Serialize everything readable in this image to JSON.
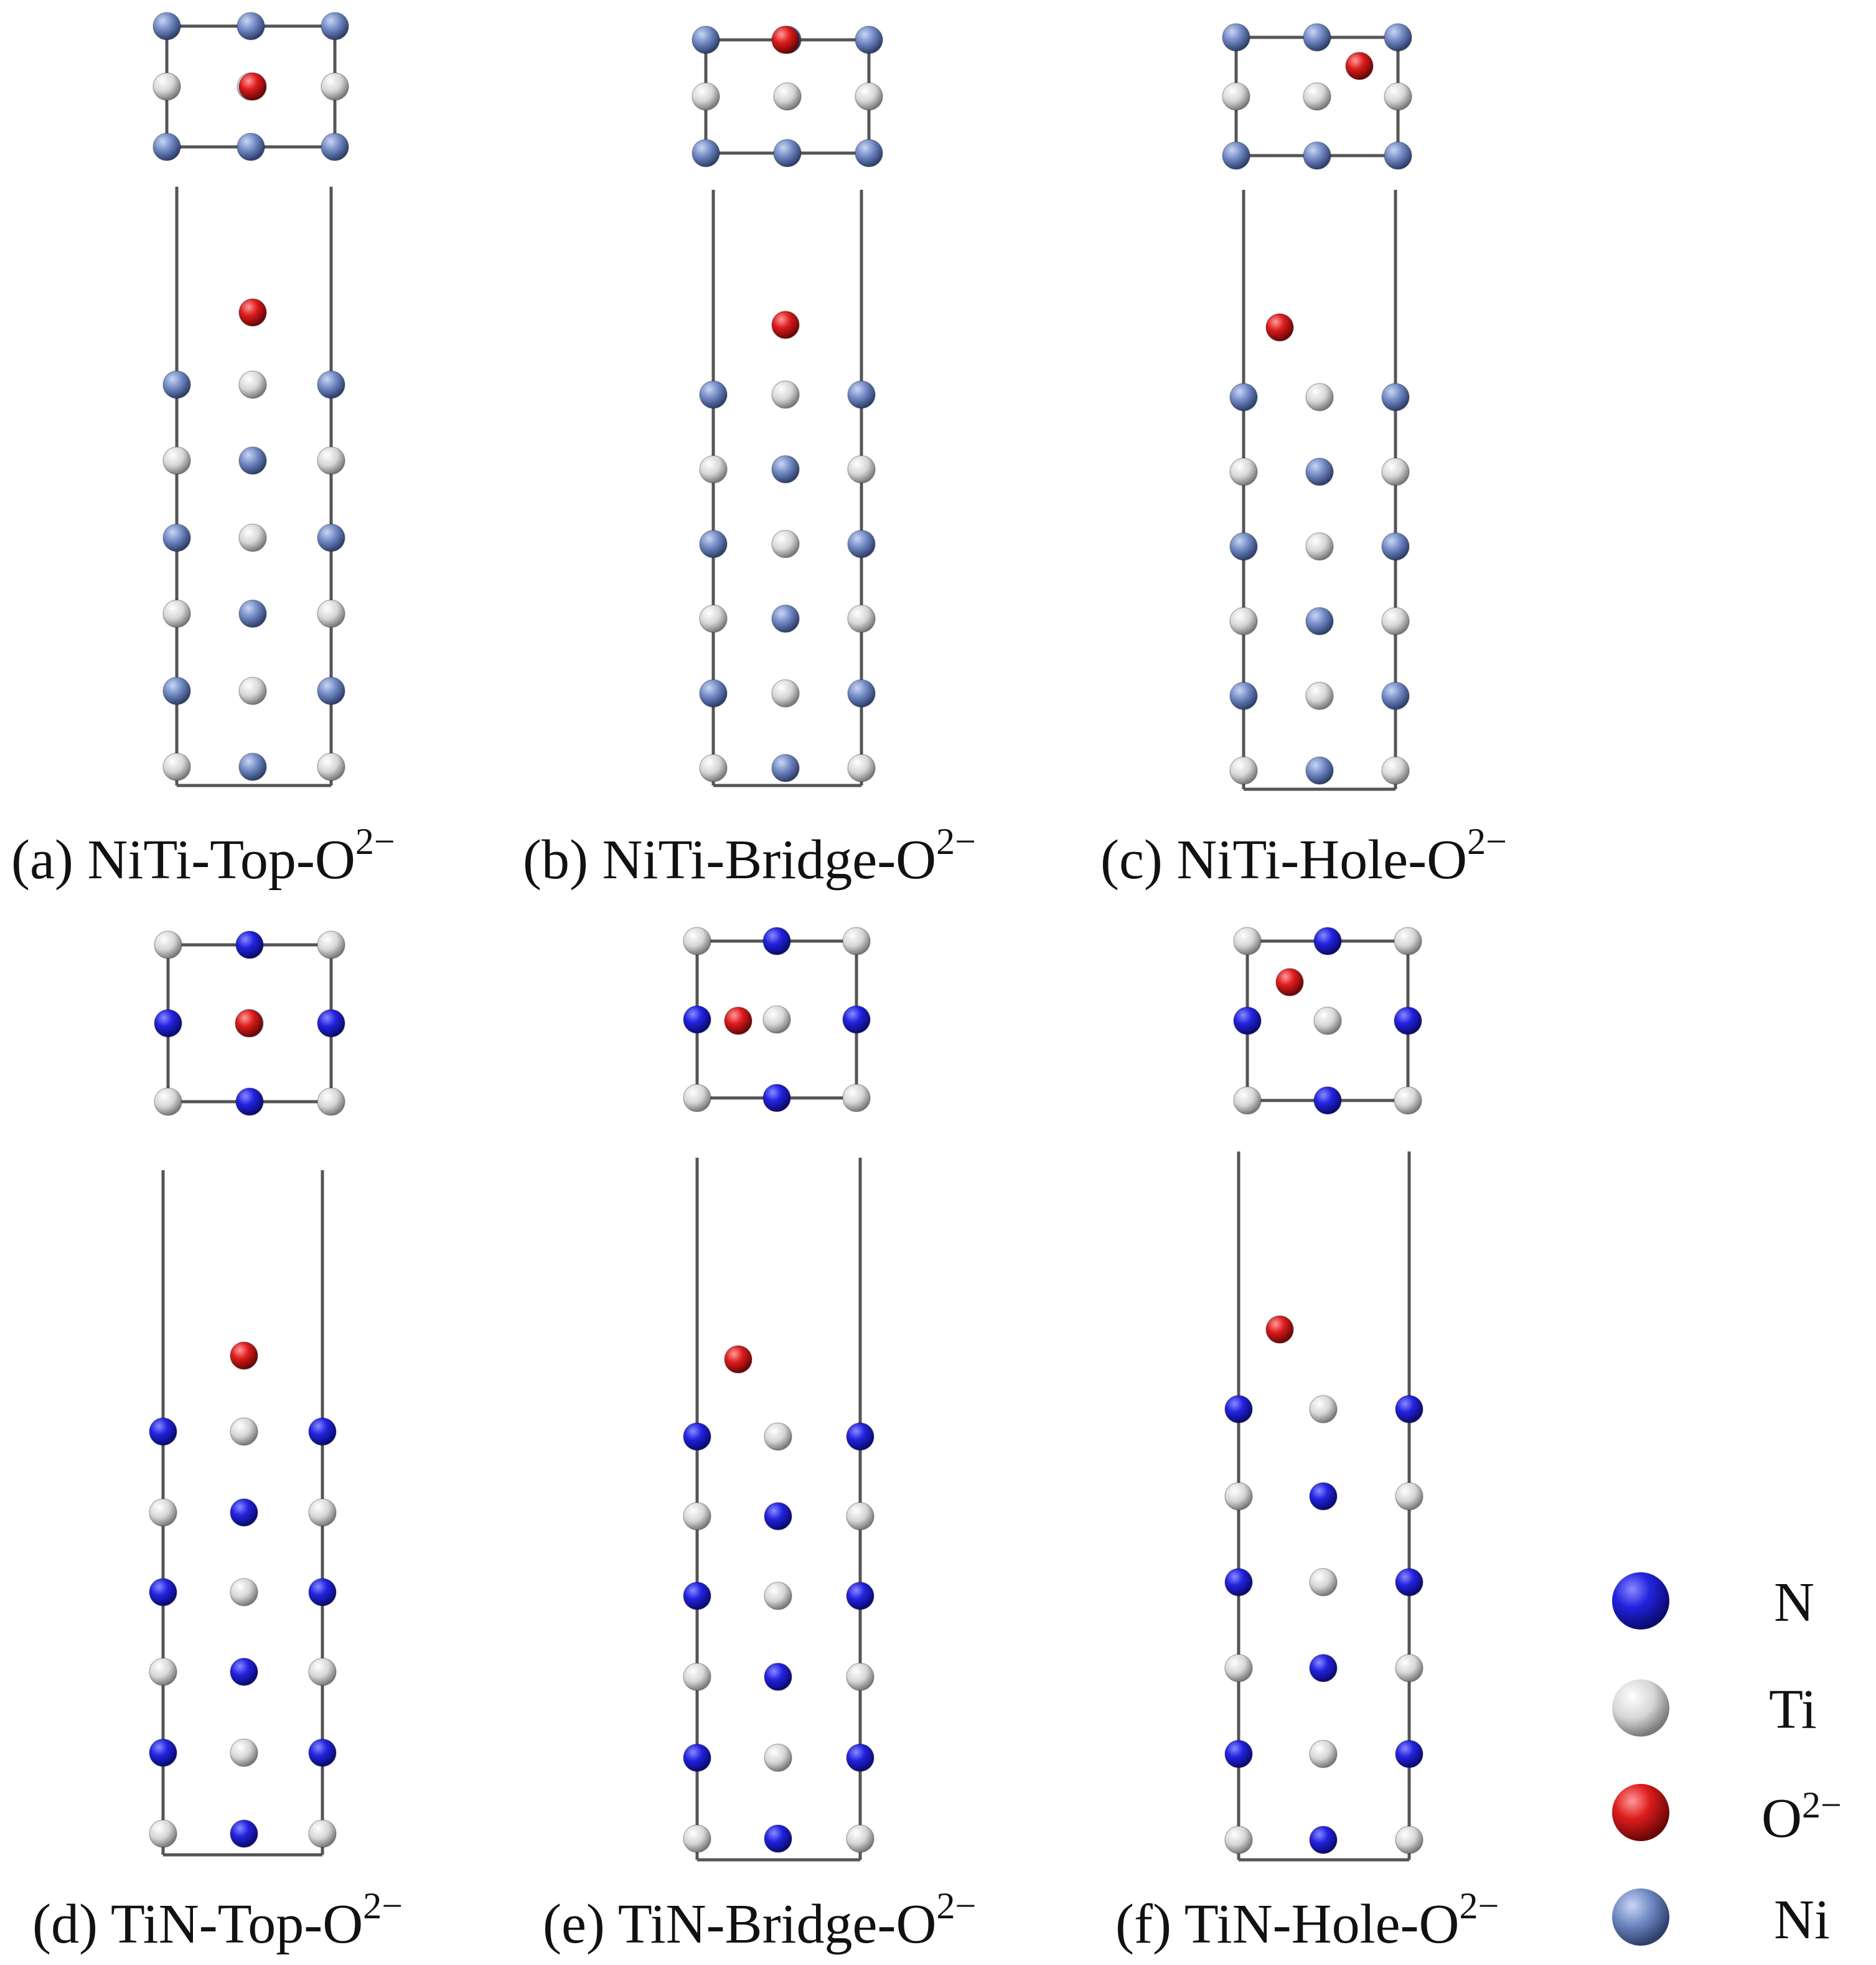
{
  "colors": {
    "N": "#1f1fd6",
    "Ti": "#d9d9d9",
    "O": "#d41c1c",
    "Ni": "#6f87c2",
    "cell_line": "#555555"
  },
  "legend": {
    "items": [
      {
        "key": "N",
        "label": "N",
        "sup": ""
      },
      {
        "key": "Ti",
        "label": "Ti",
        "sup": ""
      },
      {
        "key": "O",
        "label": "O",
        "sup": "2−"
      },
      {
        "key": "Ni",
        "label": "Ni",
        "sup": ""
      }
    ]
  },
  "panels": [
    {
      "id": "a",
      "letter": "(a)",
      "name": "NiTi-Top-O",
      "sup": "2−",
      "substrate": "NiTi",
      "site": "Top"
    },
    {
      "id": "b",
      "letter": "(b)",
      "name": "NiTi-Bridge-O",
      "sup": "2−",
      "substrate": "NiTi",
      "site": "Bridge"
    },
    {
      "id": "c",
      "letter": "(c)",
      "name": "NiTi-Hole-O",
      "sup": "2−",
      "substrate": "NiTi",
      "site": "Hole"
    },
    {
      "id": "d",
      "letter": "(d)",
      "name": "TiN-Top-O",
      "sup": "2−",
      "substrate": "TiN",
      "site": "Top"
    },
    {
      "id": "e",
      "letter": "(e)",
      "name": "TiN-Bridge-O",
      "sup": "2−",
      "substrate": "TiN",
      "site": "Bridge"
    },
    {
      "id": "f",
      "letter": "(f)",
      "name": "TiN-Hole-O",
      "sup": "2−",
      "substrate": "TiN",
      "site": "Hole"
    }
  ]
}
